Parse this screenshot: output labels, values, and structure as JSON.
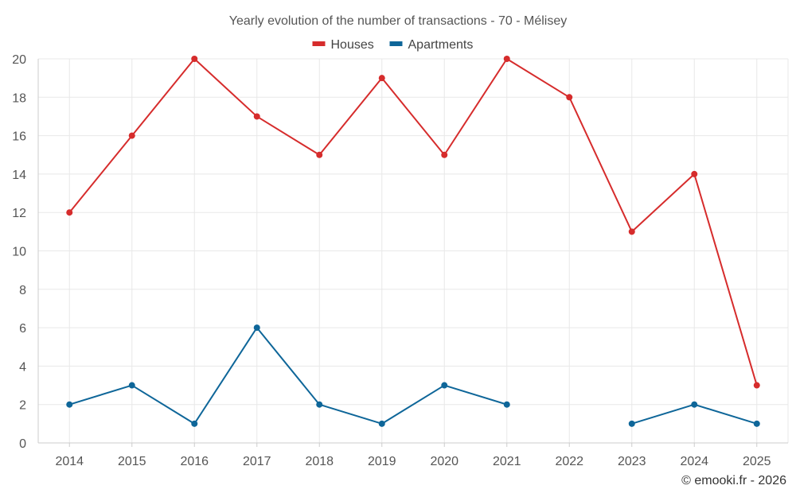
{
  "chart_data": {
    "type": "line",
    "title": "Yearly evolution of the number of transactions - 70 - Mélisey",
    "categories": [
      "2014",
      "2015",
      "2016",
      "2017",
      "2018",
      "2019",
      "2020",
      "2021",
      "2022",
      "2023",
      "2024",
      "2025"
    ],
    "series": [
      {
        "name": "Houses",
        "color": "#d62c2c",
        "values": [
          12,
          16,
          20,
          17,
          15,
          19,
          15,
          20,
          18,
          11,
          14,
          3
        ]
      },
      {
        "name": "Apartments",
        "color": "#0e6699",
        "values": [
          2,
          3,
          1,
          6,
          2,
          1,
          3,
          2,
          null,
          1,
          2,
          1
        ]
      }
    ],
    "ylim": [
      0,
      20
    ],
    "yticks": [
      0,
      2,
      4,
      6,
      8,
      10,
      12,
      14,
      16,
      18,
      20
    ],
    "xlabel": "",
    "ylabel": "",
    "grid": true,
    "legend": "top-center"
  },
  "credit": "© emooki.fr - 2026"
}
